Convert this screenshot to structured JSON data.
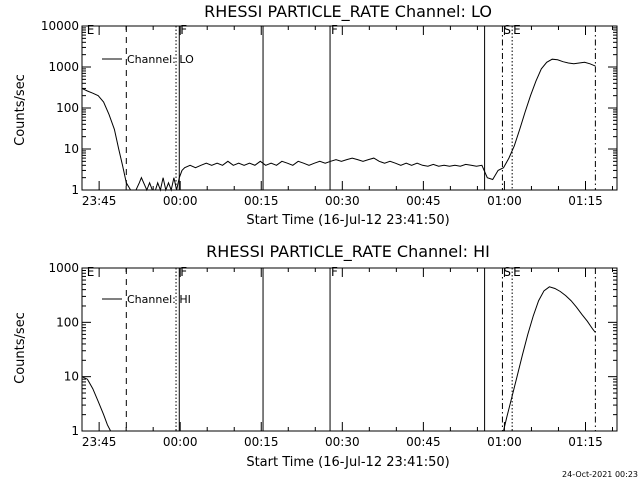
{
  "footer": {
    "timestamp": "24-Oct-2021 00:23"
  },
  "colors": {
    "background": "#ffffff",
    "ink": "#000000"
  },
  "chart_data": [
    {
      "type": "line",
      "title": "RHESSI PARTICLE_RATE Channel: LO",
      "xlabel": "Start Time (16-Jul-12 23:41:50)",
      "ylabel": "Counts/sec",
      "yscale": "log",
      "x_units": "minutes since 23:41:50",
      "xlim": [
        0,
        99
      ],
      "ylim": [
        1,
        10000
      ],
      "xticks": [
        {
          "x": 3.17,
          "label": "23:45"
        },
        {
          "x": 18.17,
          "label": "00:00"
        },
        {
          "x": 33.17,
          "label": "00:15"
        },
        {
          "x": 48.17,
          "label": "00:30"
        },
        {
          "x": 63.17,
          "label": "00:45"
        },
        {
          "x": 78.17,
          "label": "01:00"
        },
        {
          "x": 93.17,
          "label": "01:15"
        }
      ],
      "yticks": [
        {
          "y": 1,
          "label": "1"
        },
        {
          "y": 10,
          "label": "10"
        },
        {
          "y": 100,
          "label": "100"
        },
        {
          "y": 1000,
          "label": "1000"
        },
        {
          "y": 10000,
          "label": "10000"
        }
      ],
      "legend": {
        "label": "Channel: LO",
        "position": "top-left"
      },
      "markers": [
        {
          "x": 0.7,
          "style": "none",
          "label": "E"
        },
        {
          "x": 8.2,
          "style": "dashed",
          "label": ""
        },
        {
          "x": 17.4,
          "style": "dotted",
          "label": ""
        },
        {
          "x": 18.0,
          "style": "solid",
          "label": "F"
        },
        {
          "x": 33.5,
          "style": "solid",
          "label": ""
        },
        {
          "x": 45.9,
          "style": "solid",
          "label": "F"
        },
        {
          "x": 74.5,
          "style": "solid",
          "label": ""
        },
        {
          "x": 77.8,
          "style": "dashdot",
          "label": "S"
        },
        {
          "x": 79.6,
          "style": "dotted",
          "label": "E"
        },
        {
          "x": 95.0,
          "style": "dashdot",
          "label": ""
        }
      ],
      "series": [
        {
          "name": "Channel: LO",
          "x": [
            0,
            1,
            2,
            3,
            4,
            5,
            6,
            6.8,
            7.5,
            8.2,
            9,
            9.7,
            10,
            10.6,
            11,
            12,
            12.5,
            13,
            13.6,
            14,
            14.5,
            15,
            15.5,
            16,
            16.5,
            17,
            17.5,
            18,
            18.5,
            19,
            20,
            21,
            22,
            23,
            24,
            25,
            26,
            27,
            28,
            29,
            30,
            31,
            32,
            33,
            34,
            35,
            36,
            37,
            38,
            39,
            40,
            41,
            42,
            43,
            44,
            45,
            46,
            47,
            48,
            49,
            50,
            51,
            52,
            53,
            54,
            55,
            56,
            57,
            58,
            59,
            60,
            61,
            62,
            63,
            64,
            65,
            66,
            67,
            68,
            69,
            70,
            71,
            72,
            73,
            74,
            75,
            76,
            77,
            78,
            79,
            80,
            81,
            82,
            83,
            84,
            85,
            86,
            87,
            88,
            89,
            90,
            91,
            92,
            93,
            94,
            95
          ],
          "y": [
            300,
            260,
            230,
            200,
            140,
            70,
            30,
            10,
            4,
            1.5,
            1,
            1,
            1,
            1.5,
            2,
            1,
            1.5,
            1,
            1,
            1.5,
            1,
            2,
            1,
            1.5,
            1,
            2,
            1,
            2,
            3,
            3.5,
            4,
            3.5,
            4,
            4.5,
            4,
            4.5,
            4,
            5,
            4,
            4.5,
            4,
            4.5,
            4,
            5,
            4,
            4.5,
            4,
            5,
            4.5,
            4,
            5,
            4.5,
            4,
            4.5,
            5,
            4.5,
            5,
            5.5,
            5,
            5.5,
            6,
            5.5,
            5,
            5.5,
            6,
            5,
            4.5,
            5,
            4.5,
            4,
            4.5,
            4,
            4.5,
            4,
            3.8,
            4.2,
            3.8,
            4,
            3.8,
            4,
            3.8,
            4.2,
            4,
            3.8,
            4,
            2,
            1.8,
            3,
            3.5,
            6,
            12,
            30,
            80,
            200,
            450,
            900,
            1300,
            1550,
            1500,
            1350,
            1250,
            1200,
            1250,
            1300,
            1200,
            1050
          ]
        }
      ]
    },
    {
      "type": "line",
      "title": "RHESSI PARTICLE_RATE Channel: HI",
      "xlabel": "Start Time (16-Jul-12 23:41:50)",
      "ylabel": "Counts/sec",
      "yscale": "log",
      "x_units": "minutes since 23:41:50",
      "xlim": [
        0,
        99
      ],
      "ylim": [
        1,
        1000
      ],
      "xticks": [
        {
          "x": 3.17,
          "label": "23:45"
        },
        {
          "x": 18.17,
          "label": "00:00"
        },
        {
          "x": 33.17,
          "label": "00:15"
        },
        {
          "x": 48.17,
          "label": "00:30"
        },
        {
          "x": 63.17,
          "label": "00:45"
        },
        {
          "x": 78.17,
          "label": "01:00"
        },
        {
          "x": 93.17,
          "label": "01:15"
        }
      ],
      "yticks": [
        {
          "y": 1,
          "label": "1"
        },
        {
          "y": 10,
          "label": "10"
        },
        {
          "y": 100,
          "label": "100"
        },
        {
          "y": 1000,
          "label": "1000"
        }
      ],
      "legend": {
        "label": "Channel: HI",
        "position": "top-left"
      },
      "markers": [
        {
          "x": 0.7,
          "style": "none",
          "label": "E"
        },
        {
          "x": 8.2,
          "style": "dashed",
          "label": ""
        },
        {
          "x": 17.4,
          "style": "dotted",
          "label": ""
        },
        {
          "x": 18.0,
          "style": "solid",
          "label": "F"
        },
        {
          "x": 33.5,
          "style": "solid",
          "label": ""
        },
        {
          "x": 45.9,
          "style": "solid",
          "label": "F"
        },
        {
          "x": 74.5,
          "style": "solid",
          "label": ""
        },
        {
          "x": 77.8,
          "style": "dashdot",
          "label": "S"
        },
        {
          "x": 79.6,
          "style": "dotted",
          "label": "E"
        },
        {
          "x": 95.0,
          "style": "dashdot",
          "label": ""
        }
      ],
      "series": [
        {
          "name": "Channel: HI",
          "x": [
            0,
            1,
            2,
            3,
            4,
            4.7,
            5.3,
            78.0,
            78.6,
            79.5,
            80.5,
            81.5,
            82.5,
            83.5,
            84.5,
            85.5,
            86.5,
            87.5,
            88.5,
            89.5,
            90.5,
            91.5,
            92.5,
            93.5,
            94.5,
            95.0
          ],
          "y": [
            10,
            9,
            6,
            3.5,
            2,
            1.3,
            1,
            1,
            1.8,
            4,
            10,
            25,
            60,
            130,
            250,
            380,
            450,
            420,
            370,
            310,
            250,
            190,
            140,
            105,
            75,
            65
          ]
        }
      ]
    }
  ]
}
